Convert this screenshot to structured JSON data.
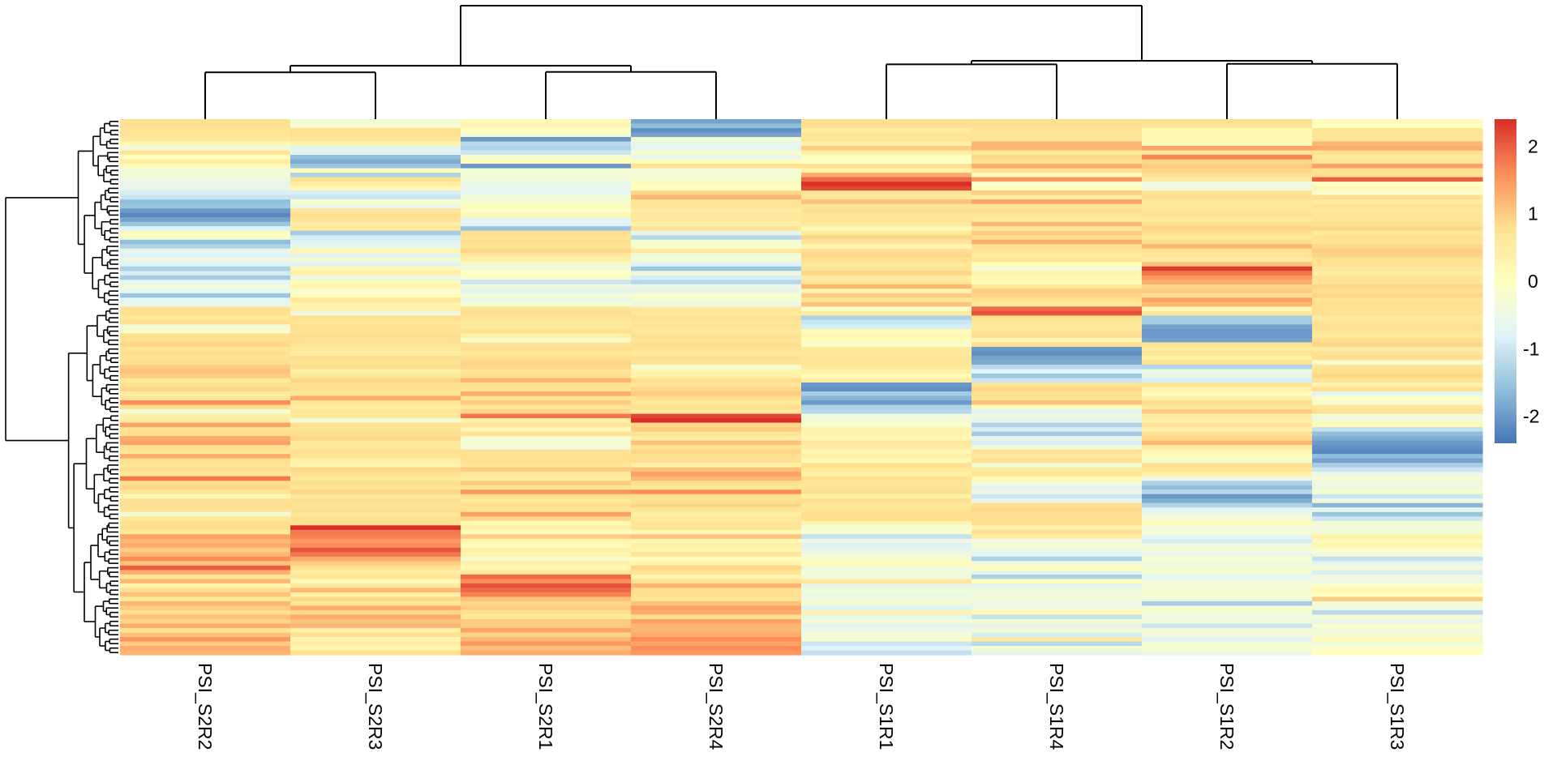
{
  "chart_data": {
    "type": "heatmap",
    "title": "",
    "columns": [
      "PSI_S2R2",
      "PSI_S2R3",
      "PSI_S2R1",
      "PSI_S2R4",
      "PSI_S1R1",
      "PSI_S1R4",
      "PSI_S1R2",
      "PSI_S1R3"
    ],
    "column_dendrogram": {
      "merges": [
        {
          "left": "PSI_S2R2",
          "right": "PSI_S2R3",
          "height": 0.412
        },
        {
          "left": "PSI_S2R1",
          "right": "PSI_S2R4",
          "height": 0.416
        },
        {
          "left": "PSI_S1R1",
          "right": "PSI_S1R4",
          "height": 0.483
        },
        {
          "left": "PSI_S1R2",
          "right": "PSI_S1R3",
          "height": 0.487
        },
        {
          "left": "S2R2+S2R3",
          "right": "S2R1+S2R4",
          "height": 0.471
        },
        {
          "left": "S1R1+S1R4",
          "right": "S1R2+S1R3",
          "height": 0.514
        },
        {
          "left": "S2 group",
          "right": "S1 group",
          "height": 1.0
        }
      ]
    },
    "row_dendrogram": true,
    "row_labels_shown": false,
    "color_scale": {
      "low": "#4575B4",
      "mid": "#FFFFBF",
      "high": "#D73027",
      "stops": [
        "#4575B4",
        "#91BFDB",
        "#E0F3F8",
        "#FFFFBF",
        "#FEE090",
        "#FC8D59",
        "#D73027"
      ],
      "range": [
        -2.4,
        2.4
      ]
    },
    "legend": {
      "position": "right",
      "ticks": [
        2,
        1,
        0,
        -1,
        -2
      ],
      "tick_labels": [
        "2",
        "1",
        "0",
        "-1",
        "-2"
      ]
    },
    "values": [
      [
        0.8,
        -0.3,
        0.2,
        -1.9,
        0.8,
        0.8,
        0.8,
        0.1
      ],
      [
        0.8,
        -0.2,
        0.2,
        -1.6,
        0.8,
        0.8,
        0.7,
        0.0
      ],
      [
        0.7,
        0.8,
        0.0,
        -2.1,
        0.5,
        0.7,
        0.2,
        0.7
      ],
      [
        0.7,
        0.8,
        -0.3,
        -1.9,
        0.7,
        0.7,
        0.2,
        0.7
      ],
      [
        0.6,
        0.7,
        -2.0,
        -0.3,
        0.7,
        0.7,
        0.2,
        0.7
      ],
      [
        0.2,
        0.3,
        -1.2,
        -0.6,
        0.4,
        1.2,
        0.1,
        1.2
      ],
      [
        -0.4,
        -0.7,
        -1.3,
        -0.7,
        1.0,
        1.2,
        1.4,
        1.3
      ],
      [
        0.7,
        -0.7,
        -1.0,
        -0.2,
        0.4,
        0.6,
        0.7,
        0.8
      ],
      [
        0.0,
        -1.6,
        -0.2,
        -0.6,
        0.0,
        0.9,
        1.7,
        0.6
      ],
      [
        0.5,
        -1.8,
        0.1,
        0.1,
        -0.1,
        0.8,
        0.9,
        0.7
      ],
      [
        0.1,
        -1.5,
        -2.0,
        0.8,
        0.8,
        1.3,
        1.0,
        1.4
      ],
      [
        -0.4,
        0.1,
        -0.3,
        -0.3,
        0.3,
        0.8,
        0.9,
        0.8
      ],
      [
        -0.3,
        -1.3,
        -0.3,
        -0.3,
        1.3,
        0.1,
        0.8,
        0.8
      ],
      [
        -0.5,
        0.8,
        -0.4,
        -0.2,
        1.9,
        1.5,
        0.5,
        2.0
      ],
      [
        -0.6,
        0.5,
        -0.6,
        0.1,
        2.4,
        -0.2,
        -0.5,
        -0.1
      ],
      [
        -0.6,
        0.2,
        -0.6,
        0.0,
        2.2,
        0.1,
        -0.4,
        0.2
      ],
      [
        -0.9,
        -0.9,
        -0.7,
        0.9,
        0.7,
        1.0,
        0.7,
        -0.2
      ],
      [
        -1.0,
        -1.0,
        -0.3,
        1.2,
        0.6,
        0.5,
        0.8,
        0.8
      ],
      [
        -1.6,
        -0.2,
        -0.3,
        0.7,
        1.1,
        1.4,
        0.6,
        0.5
      ],
      [
        -1.5,
        -0.6,
        0.1,
        0.7,
        0.7,
        0.7,
        0.6,
        0.8
      ],
      [
        -2.0,
        0.7,
        -0.1,
        0.5,
        0.8,
        0.8,
        0.7,
        0.6
      ],
      [
        -2.2,
        0.8,
        0.2,
        0.6,
        0.7,
        0.7,
        0.8,
        0.7
      ],
      [
        -1.9,
        0.7,
        -0.7,
        0.6,
        0.7,
        0.6,
        0.6,
        0.7
      ],
      [
        -1.5,
        0.5,
        -0.8,
        0.4,
        0.6,
        1.2,
        0.8,
        0.8
      ],
      [
        -0.8,
        0.6,
        -1.5,
        0.7,
        0.2,
        0.6,
        0.9,
        0.9
      ],
      [
        0.1,
        -1.4,
        0.8,
        -0.6,
        0.6,
        1.0,
        0.8,
        0.6
      ],
      [
        -0.2,
        -0.9,
        0.7,
        -1.2,
        0.9,
        0.8,
        0.6,
        0.8
      ],
      [
        -1.6,
        -0.8,
        0.8,
        -0.3,
        0.7,
        1.3,
        0.8,
        0.7
      ],
      [
        -1.3,
        -0.6,
        0.7,
        -0.2,
        0.3,
        0.8,
        1.2,
        0.9
      ],
      [
        -0.6,
        0.2,
        0.9,
        0.6,
        0.8,
        0.7,
        0.8,
        1.0
      ],
      [
        -0.8,
        -0.6,
        0.6,
        -0.4,
        0.9,
        0.5,
        0.7,
        0.9
      ],
      [
        -0.5,
        -0.3,
        0.4,
        -0.3,
        0.8,
        0.7,
        0.5,
        0.8
      ],
      [
        -0.8,
        -0.8,
        -0.2,
        -0.8,
        0.6,
        0.1,
        1.1,
        0.8
      ],
      [
        -1.3,
        0.2,
        -0.4,
        -1.5,
        0.7,
        -0.3,
        2.3,
        0.6
      ],
      [
        -0.9,
        0.4,
        0.0,
        -0.4,
        0.9,
        0.3,
        1.8,
        0.5
      ],
      [
        -1.4,
        -0.5,
        -0.2,
        -0.9,
        0.5,
        0.2,
        1.5,
        0.7
      ],
      [
        -0.7,
        0.1,
        -1.0,
        -1.2,
        0.7,
        0.1,
        1.3,
        0.7
      ],
      [
        -0.4,
        0.3,
        -0.4,
        -0.5,
        1.2,
        0.6,
        0.9,
        0.9
      ],
      [
        -0.6,
        -0.2,
        -0.7,
        -0.6,
        0.3,
        1.0,
        1.0,
        0.8
      ],
      [
        -1.5,
        0.1,
        -0.3,
        -0.2,
        1.0,
        0.9,
        0.8,
        0.9
      ],
      [
        -0.7,
        0.6,
        -0.6,
        -0.3,
        0.7,
        0.8,
        1.4,
        0.7
      ],
      [
        -0.6,
        0.3,
        -0.3,
        -0.5,
        1.1,
        0.6,
        1.2,
        0.8
      ],
      [
        0.8,
        0.4,
        0.7,
        0.6,
        -0.1,
        1.9,
        0.2,
        0.8
      ],
      [
        0.8,
        -0.4,
        0.8,
        0.6,
        0.5,
        2.1,
        0.6,
        0.8
      ],
      [
        0.6,
        0.8,
        0.7,
        0.8,
        -1.3,
        0.8,
        -1.4,
        0.6
      ],
      [
        0.8,
        0.7,
        0.6,
        0.7,
        -1.0,
        0.7,
        -1.4,
        0.7
      ],
      [
        -0.3,
        0.8,
        0.6,
        0.7,
        -0.9,
        0.6,
        -1.9,
        0.8
      ],
      [
        -0.2,
        0.7,
        0.8,
        0.6,
        0.1,
        0.7,
        -2.0,
        0.7
      ],
      [
        0.8,
        0.8,
        0.4,
        0.8,
        0.2,
        0.8,
        -2.0,
        0.6
      ],
      [
        0.8,
        0.8,
        -0.2,
        0.7,
        0.1,
        0.2,
        -1.9,
        0.8
      ],
      [
        0.9,
        0.7,
        0.7,
        0.8,
        -0.2,
        0.8,
        0.7,
        0.9
      ],
      [
        0.7,
        0.6,
        0.8,
        0.7,
        0.6,
        -2.0,
        0.6,
        0.5
      ],
      [
        0.8,
        0.5,
        0.7,
        0.6,
        0.6,
        -2.1,
        0.7,
        0.7
      ],
      [
        0.7,
        0.8,
        0.8,
        0.8,
        0.7,
        -1.9,
        0.4,
        0.8
      ],
      [
        0.8,
        0.7,
        0.9,
        0.7,
        0.7,
        -1.8,
        0.8,
        -0.2
      ],
      [
        1.0,
        0.8,
        0.9,
        -0.2,
        0.6,
        -1.2,
        -1.3,
        0.7
      ],
      [
        1.1,
        0.4,
        0.7,
        0.3,
        0.4,
        -0.8,
        -0.4,
        0.8
      ],
      [
        1.0,
        0.6,
        0.8,
        0.4,
        0.1,
        -1.5,
        -0.6,
        0.9
      ],
      [
        0.6,
        0.9,
        1.2,
        0.8,
        0.5,
        -1.0,
        -0.9,
        0.7
      ],
      [
        0.8,
        0.8,
        0.8,
        0.7,
        -2.0,
        0.7,
        0.7,
        0.3
      ],
      [
        0.9,
        0.8,
        0.7,
        0.9,
        -2.1,
        0.9,
        0.3,
        0.8
      ],
      [
        0.5,
        0.7,
        1.3,
        1.0,
        -1.4,
        0.8,
        0.1,
        -0.7
      ],
      [
        0.7,
        1.3,
        0.7,
        0.8,
        -1.7,
        0.7,
        0.4,
        -0.1
      ],
      [
        1.6,
        0.7,
        1.0,
        0.6,
        -2.0,
        1.1,
        0.8,
        -0.2
      ],
      [
        0.8,
        0.5,
        0.7,
        0.8,
        -1.3,
        0.1,
        0.6,
        0.6
      ],
      [
        -0.3,
        0.7,
        0.9,
        0.6,
        -1.2,
        -0.7,
        1.0,
        0.8
      ],
      [
        0.4,
        0.6,
        1.8,
        2.2,
        -0.4,
        -0.5,
        0.5,
        -0.4
      ],
      [
        0.5,
        -0.3,
        0.4,
        2.4,
        -0.3,
        -0.6,
        0.4,
        -0.3
      ],
      [
        1.4,
        0.8,
        0.7,
        0.9,
        -0.2,
        -1.3,
        0.7,
        0.2
      ],
      [
        0.7,
        0.7,
        0.2,
        1.0,
        0.3,
        -0.9,
        0.4,
        -1.1
      ],
      [
        0.8,
        0.8,
        0.7,
        0.7,
        0.3,
        -1.4,
        0.8,
        -1.6
      ],
      [
        1.3,
        0.9,
        -0.3,
        0.5,
        0.2,
        -0.6,
        0.9,
        -1.8
      ],
      [
        1.4,
        0.6,
        -0.2,
        1.1,
        0.6,
        -0.9,
        1.2,
        -2.0
      ],
      [
        0.8,
        0.6,
        -0.4,
        0.7,
        0.5,
        -0.4,
        0.6,
        -2.1
      ],
      [
        0.7,
        0.8,
        0.7,
        0.9,
        0.2,
        0.7,
        0.2,
        -2.2
      ],
      [
        1.3,
        0.7,
        0.8,
        0.8,
        0.4,
        0.6,
        0.1,
        -1.6
      ],
      [
        0.8,
        0.4,
        0.8,
        0.8,
        0.2,
        0.8,
        -0.2,
        -1.9
      ],
      [
        0.7,
        0.3,
        0.7,
        0.4,
        0.8,
        -0.3,
        0.8,
        -1.4
      ],
      [
        0.8,
        0.9,
        1.0,
        1.1,
        0.6,
        0.6,
        0.7,
        -1.0
      ],
      [
        0.6,
        0.8,
        0.6,
        1.4,
        0.4,
        0.7,
        0.4,
        -0.5
      ],
      [
        1.8,
        0.6,
        0.5,
        1.2,
        0.8,
        0.2,
        -0.5,
        -0.3
      ],
      [
        0.8,
        0.8,
        1.0,
        0.8,
        0.7,
        -0.3,
        -1.3,
        -0.4
      ],
      [
        0.9,
        0.7,
        0.7,
        0.6,
        0.7,
        -0.7,
        -1.6,
        -0.5
      ],
      [
        0.7,
        0.9,
        1.5,
        1.6,
        0.8,
        -0.5,
        -1.2,
        -0.2
      ],
      [
        0.2,
        0.6,
        0.8,
        0.8,
        0.4,
        -1.0,
        -2.0,
        -1.0
      ],
      [
        0.8,
        0.8,
        0.6,
        0.7,
        0.8,
        -0.6,
        -1.8,
        -0.4
      ],
      [
        0.8,
        0.7,
        0.8,
        0.9,
        0.6,
        0.8,
        -1.3,
        -1.7
      ],
      [
        0.7,
        0.8,
        0.7,
        0.7,
        0.7,
        0.9,
        -0.8,
        -0.6
      ],
      [
        -0.3,
        0.6,
        1.4,
        0.4,
        0.8,
        0.8,
        -0.5,
        -1.5
      ],
      [
        0.6,
        0.8,
        0.9,
        0.6,
        0.8,
        0.8,
        -0.3,
        -1.0
      ],
      [
        0.8,
        0.8,
        0.2,
        0.7,
        0.3,
        0.8,
        0.1,
        -0.3
      ],
      [
        0.8,
        2.4,
        0.4,
        0.7,
        -0.3,
        0.3,
        -0.4,
        -0.4
      ],
      [
        0.6,
        1.8,
        0.1,
        0.2,
        -0.2,
        0.8,
        -0.2,
        -0.3
      ],
      [
        1.4,
        1.7,
        1.0,
        1.1,
        -1.1,
        0.5,
        -0.7,
        0.4
      ],
      [
        1.2,
        1.5,
        0.3,
        0.2,
        -0.5,
        -0.4,
        -0.9,
        0.1
      ],
      [
        1.3,
        1.6,
        0.1,
        0.4,
        -0.8,
        -0.3,
        -0.4,
        0.3
      ],
      [
        1.0,
        2.1,
        0.4,
        0.3,
        -0.6,
        -0.5,
        -0.3,
        -0.2
      ],
      [
        1.2,
        1.8,
        0.3,
        0.7,
        -0.4,
        -0.8,
        -0.6,
        -0.4
      ],
      [
        1.6,
        1.3,
        -0.2,
        0.1,
        -0.2,
        -1.3,
        -0.2,
        -1.1
      ],
      [
        1.1,
        1.0,
        0.4,
        0.3,
        0.1,
        -0.4,
        -0.5,
        -0.7
      ],
      [
        2.0,
        0.8,
        0.2,
        0.9,
        -0.4,
        0.1,
        -0.3,
        -0.3
      ],
      [
        1.3,
        0.5,
        0.6,
        0.7,
        -0.3,
        -0.6,
        -0.3,
        -0.9
      ],
      [
        0.7,
        0.7,
        1.9,
        0.3,
        -0.4,
        -1.3,
        -0.7,
        -0.4
      ],
      [
        1.2,
        0.2,
        1.6,
        0.7,
        0.6,
        0.0,
        -0.4,
        -0.5
      ],
      [
        0.3,
        0.6,
        2.1,
        1.2,
        -0.6,
        -0.7,
        -0.3,
        -0.1
      ],
      [
        0.8,
        1.2,
        1.9,
        0.8,
        -0.3,
        -0.3,
        -0.3,
        0.2
      ],
      [
        1.1,
        0.4,
        1.7,
        0.8,
        -0.5,
        -0.4,
        -0.2,
        0.0
      ],
      [
        0.6,
        0.9,
        1.1,
        0.7,
        -0.4,
        -0.3,
        -0.4,
        1.0
      ],
      [
        1.2,
        0.6,
        0.9,
        1.1,
        -0.3,
        -0.5,
        -1.4,
        -0.3
      ],
      [
        1.0,
        1.3,
        1.0,
        1.4,
        -0.8,
        -0.4,
        -0.2,
        -0.4
      ],
      [
        0.8,
        0.9,
        0.8,
        1.3,
        0.3,
        0.2,
        -0.3,
        -1.2
      ],
      [
        1.1,
        1.3,
        0.6,
        0.8,
        -0.6,
        -1.1,
        -0.5,
        -0.3
      ],
      [
        0.9,
        1.1,
        1.0,
        1.4,
        -0.3,
        -0.3,
        -0.4,
        -0.6
      ],
      [
        1.3,
        1.2,
        1.0,
        1.2,
        -0.7,
        -0.6,
        -1.0,
        -0.2
      ],
      [
        0.7,
        0.4,
        1.4,
        1.2,
        -0.5,
        -0.3,
        -0.3,
        -0.4
      ],
      [
        1.1,
        0.8,
        0.9,
        1.3,
        -0.3,
        -0.9,
        -0.4,
        -0.3
      ],
      [
        1.5,
        0.2,
        1.2,
        1.6,
        -0.2,
        0.6,
        -0.8,
        0.2
      ],
      [
        1.0,
        0.5,
        1.5,
        1.4,
        -1.0,
        -1.2,
        -0.3,
        -0.4
      ],
      [
        1.3,
        0.3,
        1.1,
        1.6,
        -0.8,
        -0.3,
        -0.2,
        -0.1
      ],
      [
        1.2,
        0.8,
        1.3,
        1.5,
        -1.1,
        -0.6,
        -0.5,
        0.0
      ]
    ]
  }
}
